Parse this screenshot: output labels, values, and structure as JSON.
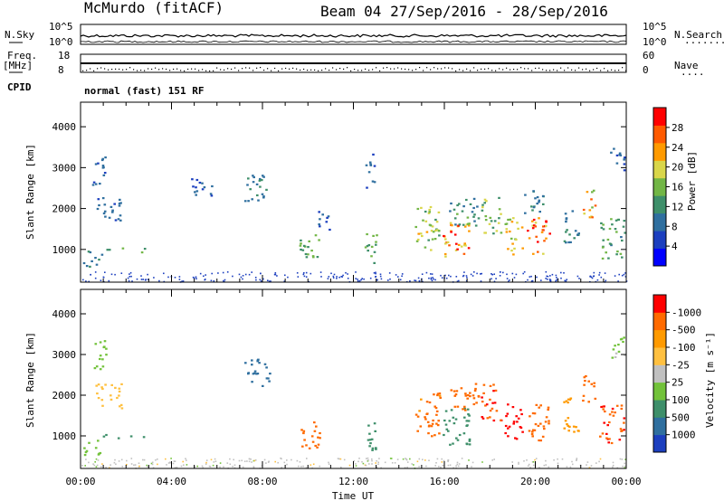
{
  "header": {
    "station": "McMurdo (fitACF)",
    "beam_info": "Beam 04 27/Sep/2016 - 28/Sep/2016"
  },
  "panels": {
    "nsky": {
      "left_label": "N.Sky",
      "right_label": "N.Search",
      "left_ticks": [
        "10^5",
        "10^0"
      ],
      "right_ticks": [
        "10^5",
        "10^0"
      ],
      "right_dots": "·········"
    },
    "freq": {
      "left_label_1": "Freq.",
      "left_label_2": "[MHz]",
      "right_label": "Nave",
      "left_ticks": [
        "18",
        "8"
      ],
      "right_ticks": [
        "60",
        "0"
      ],
      "right_dots": "····"
    },
    "cpid": {
      "label": "CPID",
      "text": "normal (fast) 151 RF"
    }
  },
  "chart_data": [
    {
      "type": "heatmap",
      "name": "power",
      "ylabel": "Slant Range [km]",
      "yticks": [
        "1000",
        "2000",
        "3000",
        "4000"
      ],
      "ylim": [
        200,
        4600
      ],
      "xlim": [
        0,
        24
      ],
      "colorbar_label": "Power [dB]",
      "colorbar_ticks": [
        "4",
        "8",
        "12",
        "16",
        "20",
        "24",
        "28"
      ],
      "colorbar_colors": [
        "#0000ff",
        "#1c3fbf",
        "#2f6f9f",
        "#3e8f6a",
        "#72b646",
        "#d9d64a",
        "#ff9a00",
        "#ff5a00",
        "#ff0000"
      ],
      "patches": [
        {
          "t": [
            0.1,
            0.9
          ],
          "r": [
            550,
            1000
          ],
          "value": 10
        },
        {
          "t": [
            0.9,
            2.8
          ],
          "r": [
            950,
            1050
          ],
          "value": 12
        },
        {
          "t": [
            0.6,
            1.8
          ],
          "r": [
            1700,
            2300
          ],
          "value": 8
        },
        {
          "t": [
            0.5,
            1.1
          ],
          "r": [
            2600,
            3400
          ],
          "value": 8
        },
        {
          "t": [
            4.8,
            5.8
          ],
          "r": [
            2300,
            2800
          ],
          "value": 8
        },
        {
          "t": [
            7.2,
            8.3
          ],
          "r": [
            2200,
            2900
          ],
          "value": 10
        },
        {
          "t": [
            9.6,
            10.5
          ],
          "r": [
            700,
            1400
          ],
          "value": 14
        },
        {
          "t": [
            10.4,
            11.0
          ],
          "r": [
            1500,
            2000
          ],
          "value": 8
        },
        {
          "t": [
            12.4,
            13.0
          ],
          "r": [
            650,
            1400
          ],
          "value": 14
        },
        {
          "t": [
            12.5,
            12.9
          ],
          "r": [
            2500,
            3400
          ],
          "value": 8
        },
        {
          "t": [
            14.7,
            15.8
          ],
          "r": [
            1000,
            2100
          ],
          "value": 18
        },
        {
          "t": [
            15.9,
            17.1
          ],
          "r": [
            800,
            1700
          ],
          "value": 24
        },
        {
          "t": [
            16.2,
            17.5
          ],
          "r": [
            1600,
            2300
          ],
          "value": 12
        },
        {
          "t": [
            17.6,
            18.5
          ],
          "r": [
            1400,
            2300
          ],
          "value": 16
        },
        {
          "t": [
            18.6,
            19.4
          ],
          "r": [
            900,
            1800
          ],
          "value": 20
        },
        {
          "t": [
            19.6,
            20.6
          ],
          "r": [
            900,
            1800
          ],
          "value": 26
        },
        {
          "t": [
            19.5,
            20.5
          ],
          "r": [
            1900,
            2500
          ],
          "value": 10
        },
        {
          "t": [
            21.2,
            21.9
          ],
          "r": [
            1100,
            2000
          ],
          "value": 10
        },
        {
          "t": [
            22.0,
            22.6
          ],
          "r": [
            1800,
            2500
          ],
          "value": 22
        },
        {
          "t": [
            22.8,
            23.9
          ],
          "r": [
            800,
            1800
          ],
          "value": 14
        },
        {
          "t": [
            23.2,
            23.9
          ],
          "r": [
            2900,
            3500
          ],
          "value": 8
        }
      ]
    },
    {
      "type": "heatmap",
      "name": "velocity",
      "ylabel": "Slant Range [km]",
      "yticks": [
        "1000",
        "2000",
        "3000",
        "4000"
      ],
      "ylim": [
        200,
        4600
      ],
      "xlim": [
        0,
        24
      ],
      "xticks": [
        "00:00",
        "04:00",
        "08:00",
        "12:00",
        "16:00",
        "20:00",
        "00:00"
      ],
      "xlabel": "Time UT",
      "colorbar_label": "Velocity [m s⁻¹]",
      "colorbar_ticks": [
        "1000",
        "500",
        "100",
        "25",
        "-25",
        "-100",
        "-500",
        "-1000"
      ],
      "colorbar_colors": [
        "#1c3fbf",
        "#2f6f9f",
        "#3e8f6a",
        "#72c23a",
        "#c0c0c0",
        "#ffc040",
        "#ff9a00",
        "#ff6a00",
        "#ff0000"
      ],
      "patches": [
        {
          "t": [
            0.1,
            0.9
          ],
          "r": [
            550,
            1000
          ],
          "value": 50
        },
        {
          "t": [
            0.9,
            2.8
          ],
          "r": [
            950,
            1050
          ],
          "value": 200
        },
        {
          "t": [
            0.6,
            1.8
          ],
          "r": [
            1700,
            2300
          ],
          "value": -80
        },
        {
          "t": [
            0.5,
            1.1
          ],
          "r": [
            2600,
            3400
          ],
          "value": 60
        },
        {
          "t": [
            7.2,
            8.3
          ],
          "r": [
            2200,
            2900
          ],
          "value": 400
        },
        {
          "t": [
            9.6,
            10.5
          ],
          "r": [
            700,
            1400
          ],
          "value": -400
        },
        {
          "t": [
            12.4,
            13.0
          ],
          "r": [
            650,
            1400
          ],
          "value": 200
        },
        {
          "t": [
            14.7,
            15.8
          ],
          "r": [
            1000,
            2100
          ],
          "value": -300
        },
        {
          "t": [
            15.9,
            17.1
          ],
          "r": [
            800,
            1700
          ],
          "value": 150
        },
        {
          "t": [
            16.2,
            17.5
          ],
          "r": [
            1600,
            2300
          ],
          "value": -400
        },
        {
          "t": [
            17.6,
            18.5
          ],
          "r": [
            1400,
            2300
          ],
          "value": -500
        },
        {
          "t": [
            18.6,
            19.4
          ],
          "r": [
            900,
            1800
          ],
          "value": -700
        },
        {
          "t": [
            19.6,
            20.6
          ],
          "r": [
            900,
            1800
          ],
          "value": -400
        },
        {
          "t": [
            21.2,
            21.9
          ],
          "r": [
            1100,
            2000
          ],
          "value": -150
        },
        {
          "t": [
            22.0,
            22.6
          ],
          "r": [
            1800,
            2500
          ],
          "value": -300
        },
        {
          "t": [
            22.8,
            23.9
          ],
          "r": [
            800,
            1800
          ],
          "value": -500
        },
        {
          "t": [
            23.2,
            23.9
          ],
          "r": [
            2900,
            3500
          ],
          "value": 30
        }
      ]
    }
  ]
}
